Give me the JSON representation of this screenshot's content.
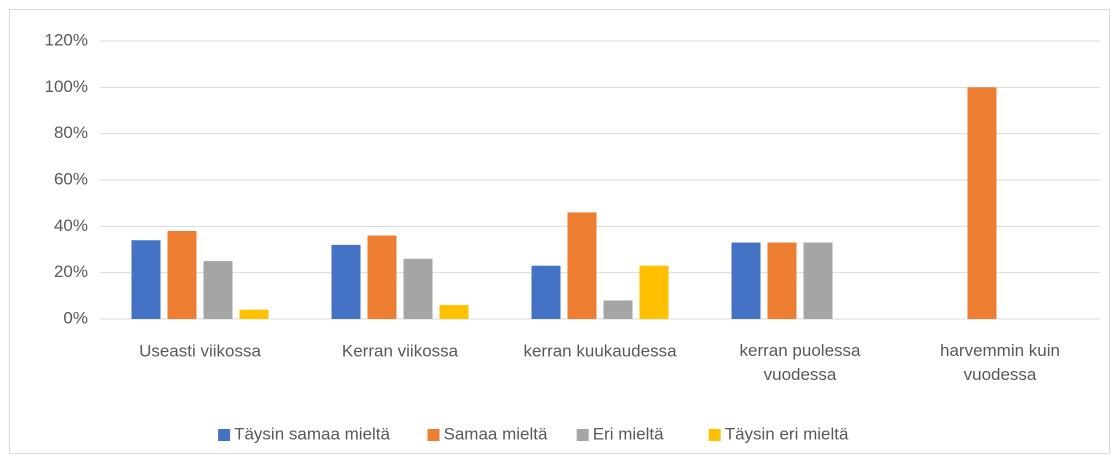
{
  "chart_data": {
    "type": "bar",
    "categories": [
      "Useasti viikossa",
      "Kerran viikossa",
      "kerran kuukaudessa",
      "kerran puolessa\nvuodessa",
      "harvemmin kuin\nvuodessa"
    ],
    "series": [
      {
        "name": "Täysin samaa mieltä",
        "color": "#4472c4",
        "values": [
          34,
          32,
          23,
          33,
          0
        ]
      },
      {
        "name": "Samaa mieltä",
        "color": "#ed7d31",
        "values": [
          38,
          36,
          46,
          33,
          100
        ]
      },
      {
        "name": "Eri mieltä",
        "color": "#a5a5a5",
        "values": [
          25,
          26,
          8,
          33,
          0
        ]
      },
      {
        "name": "Täysin eri mieltä",
        "color": "#ffc000",
        "values": [
          4,
          6,
          23,
          0,
          0
        ]
      }
    ],
    "ylim": [
      0,
      120
    ],
    "yticks": [
      {
        "value": 0,
        "label": "0%"
      },
      {
        "value": 20,
        "label": "20%"
      },
      {
        "value": 40,
        "label": "40%"
      },
      {
        "value": 60,
        "label": "60%"
      },
      {
        "value": 80,
        "label": "80%"
      },
      {
        "value": 100,
        "label": "100%"
      },
      {
        "value": 120,
        "label": "120%"
      }
    ],
    "grid": true,
    "legend": "bottom"
  }
}
